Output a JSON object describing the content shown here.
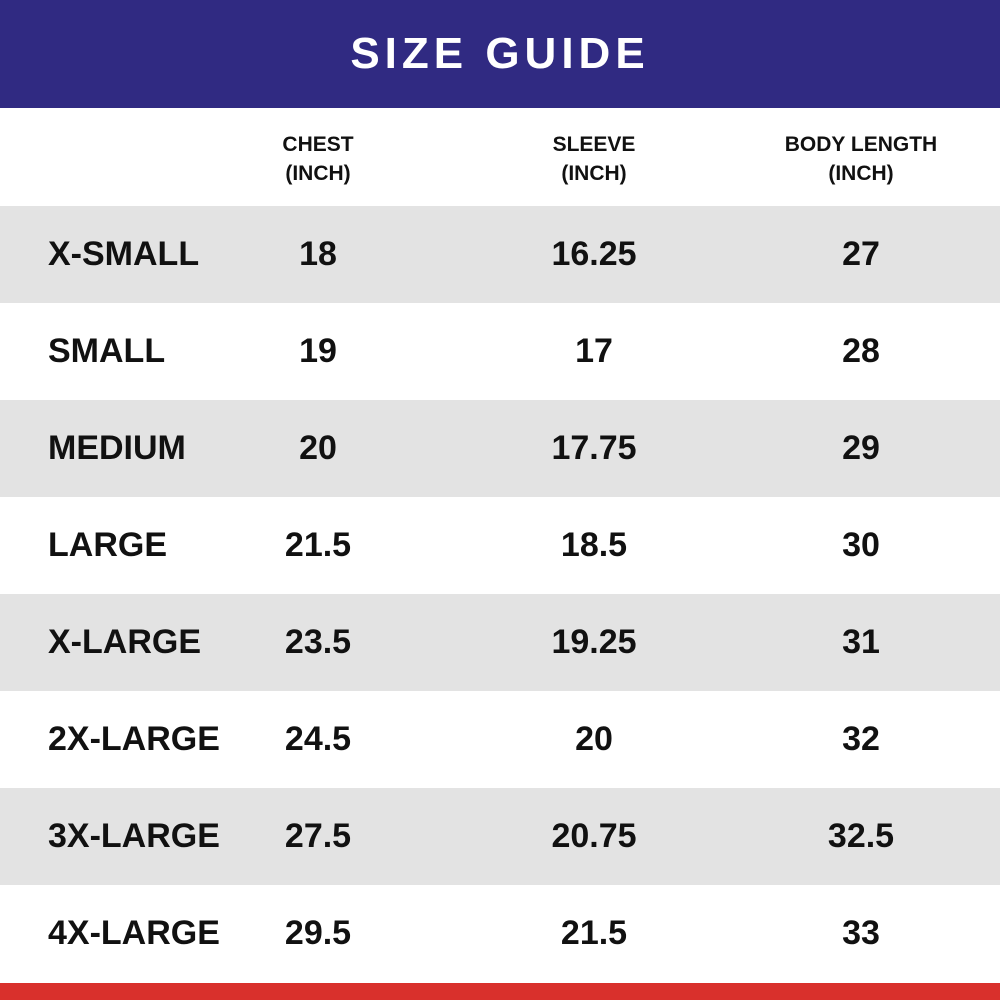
{
  "title": "SIZE GUIDE",
  "colors": {
    "header_bg": "#302a82",
    "bottom_bar": "#d9302c",
    "row_shade": "#e3e3e3",
    "text": "#111111"
  },
  "columns": [
    {
      "line1": "CHEST",
      "line2": "(INCH)"
    },
    {
      "line1": "SLEEVE",
      "line2": "(INCH)"
    },
    {
      "line1": "BODY LENGTH",
      "line2": "(INCH)"
    }
  ],
  "rows": [
    {
      "size": "X-SMALL",
      "chest": "18",
      "sleeve": "16.25",
      "body_length": "27"
    },
    {
      "size": "SMALL",
      "chest": "19",
      "sleeve": "17",
      "body_length": "28"
    },
    {
      "size": "MEDIUM",
      "chest": "20",
      "sleeve": "17.75",
      "body_length": "29"
    },
    {
      "size": "LARGE",
      "chest": "21.5",
      "sleeve": "18.5",
      "body_length": "30"
    },
    {
      "size": "X-LARGE",
      "chest": "23.5",
      "sleeve": "19.25",
      "body_length": "31"
    },
    {
      "size": "2X-LARGE",
      "chest": "24.5",
      "sleeve": "20",
      "body_length": "32"
    },
    {
      "size": "3X-LARGE",
      "chest": "27.5",
      "sleeve": "20.75",
      "body_length": "32.5"
    },
    {
      "size": "4X-LARGE",
      "chest": "29.5",
      "sleeve": "21.5",
      "body_length": "33"
    }
  ]
}
